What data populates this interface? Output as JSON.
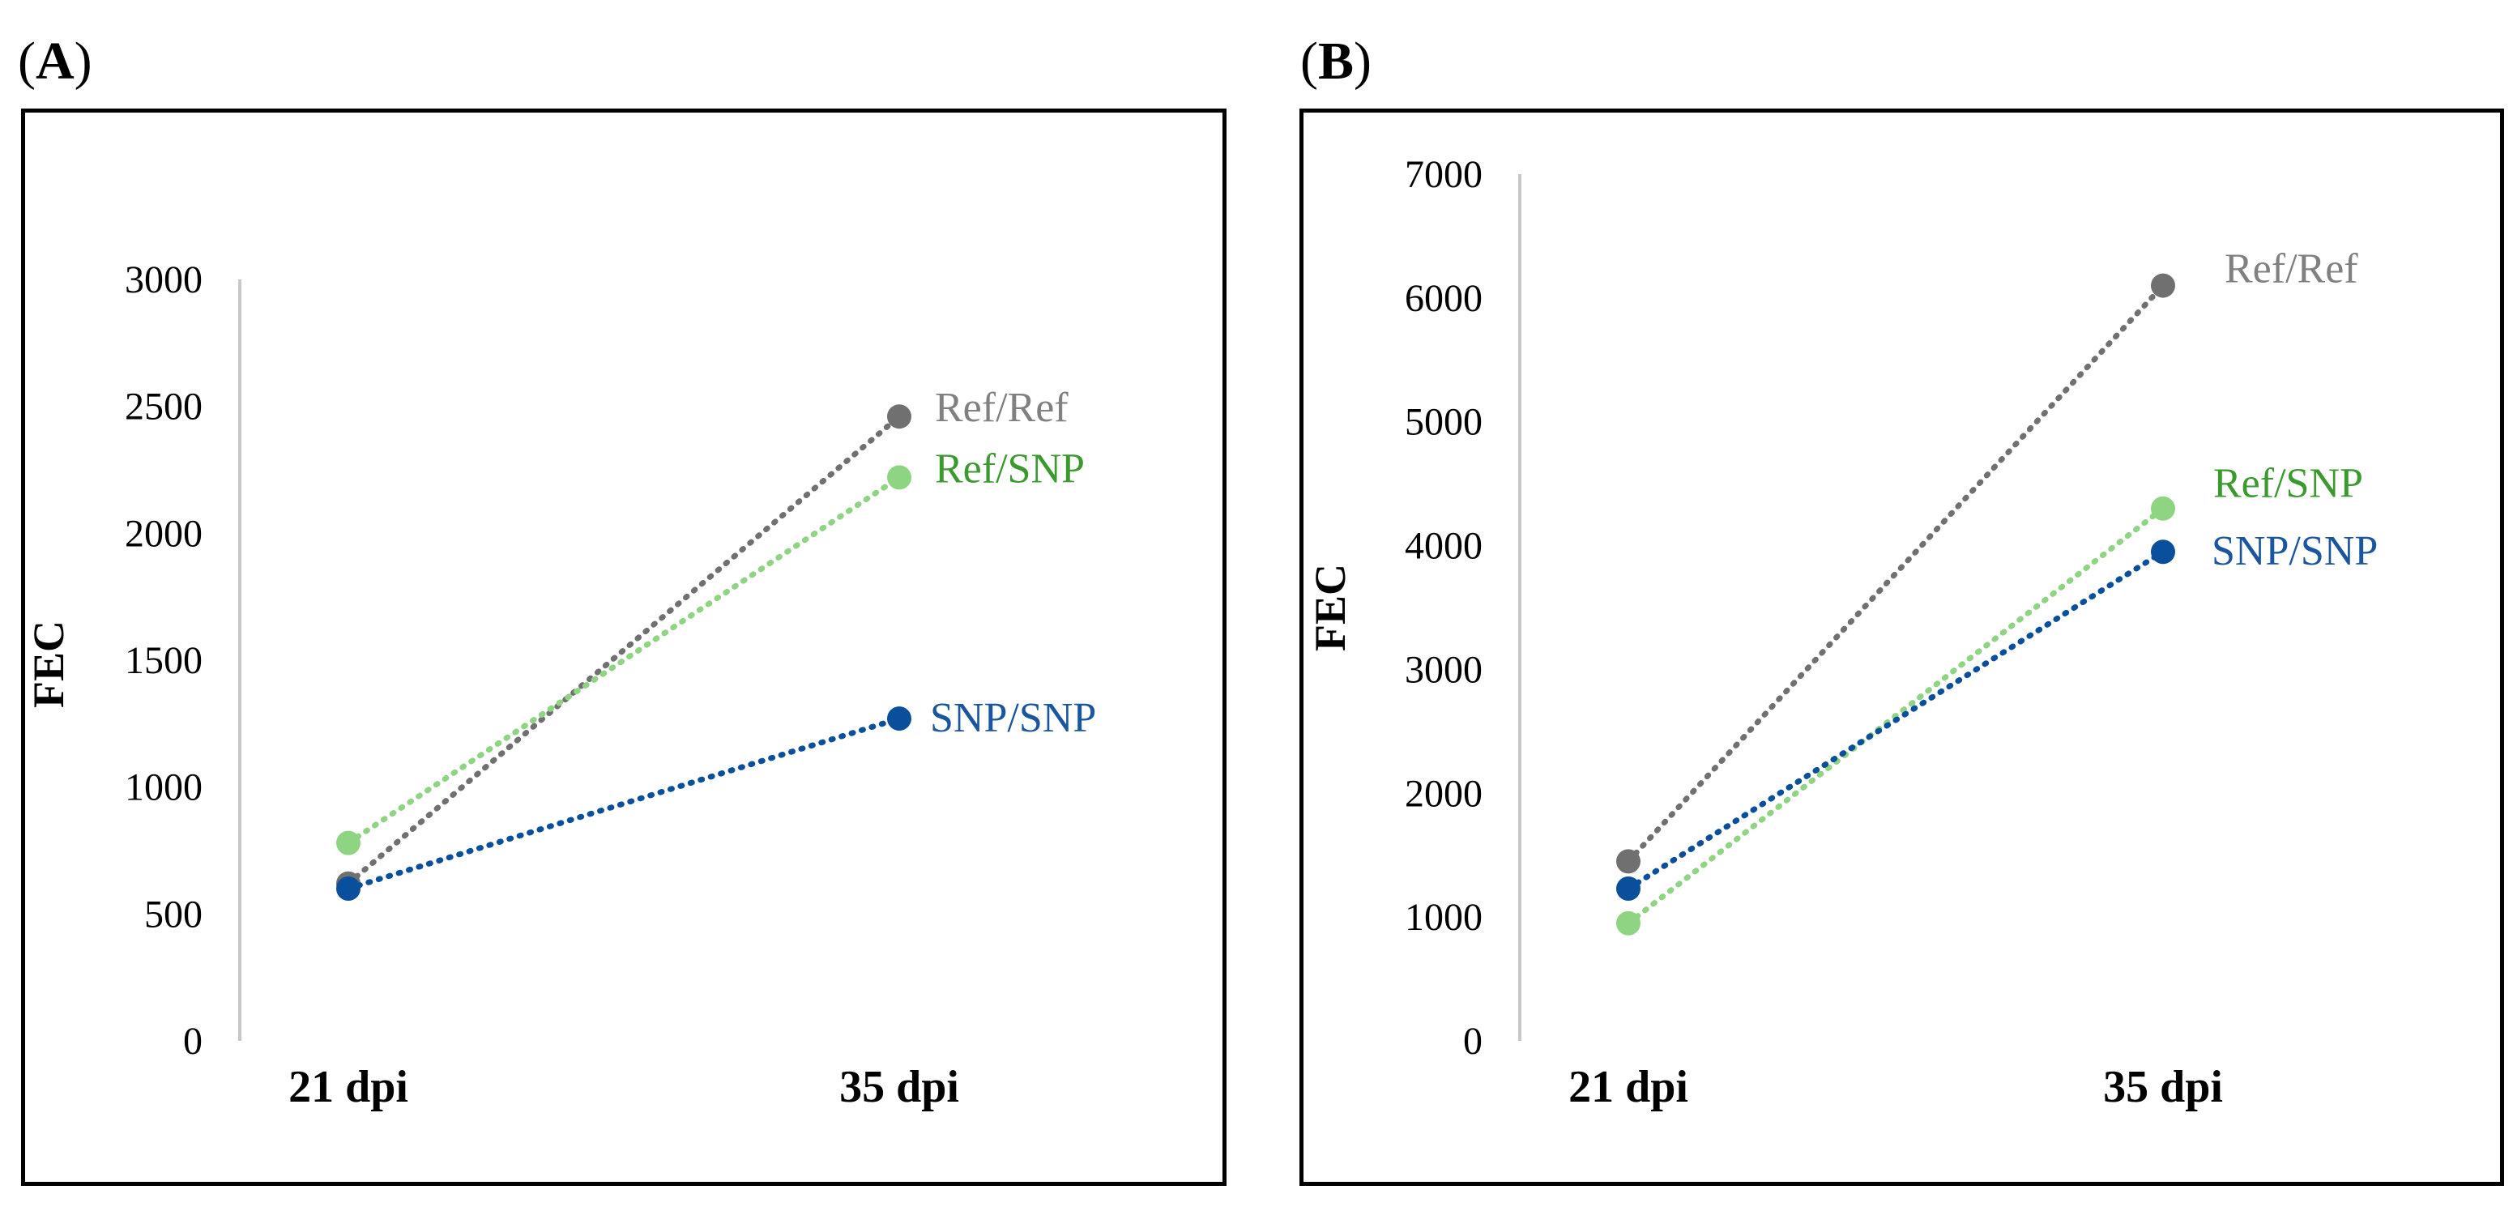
{
  "panels": {
    "A": {
      "label_open": "(",
      "label_letter": "A",
      "label_close": ")"
    },
    "B": {
      "label_open": "(",
      "label_letter": "B",
      "label_close": ")"
    }
  },
  "chart_data": [
    {
      "id": "A",
      "type": "line",
      "title": "",
      "xlabel": "",
      "ylabel": "FEC",
      "categories": [
        "21 dpi",
        "35 dpi"
      ],
      "ylim": [
        0,
        3000
      ],
      "yticks": [
        0,
        500,
        1000,
        1500,
        2000,
        2500,
        3000
      ],
      "grid": false,
      "line_style": "dotted",
      "series": [
        {
          "name": "Ref/Ref",
          "color": "#707070",
          "label_color": "#808080",
          "values": [
            620,
            2460
          ]
        },
        {
          "name": "Ref/SNP",
          "color": "#8fd483",
          "label_color": "#3a9a2e",
          "values": [
            780,
            2220
          ]
        },
        {
          "name": "SNP/SNP",
          "color": "#0a4f9c",
          "label_color": "#1a56a0",
          "values": [
            600,
            1270
          ]
        }
      ]
    },
    {
      "id": "B",
      "type": "line",
      "title": "",
      "xlabel": "",
      "ylabel": "FEC",
      "categories": [
        "21 dpi",
        "35 dpi"
      ],
      "ylim": [
        0,
        7000
      ],
      "yticks": [
        0,
        1000,
        2000,
        3000,
        4000,
        5000,
        6000,
        7000
      ],
      "grid": false,
      "line_style": "dotted",
      "series": [
        {
          "name": "Ref/Ref",
          "color": "#707070",
          "label_color": "#808080",
          "values": [
            1450,
            6100
          ]
        },
        {
          "name": "Ref/SNP",
          "color": "#8fd483",
          "label_color": "#3a9a2e",
          "values": [
            950,
            4300
          ]
        },
        {
          "name": "SNP/SNP",
          "color": "#0a4f9c",
          "label_color": "#1a56a0",
          "values": [
            1230,
            3950
          ]
        }
      ]
    }
  ]
}
